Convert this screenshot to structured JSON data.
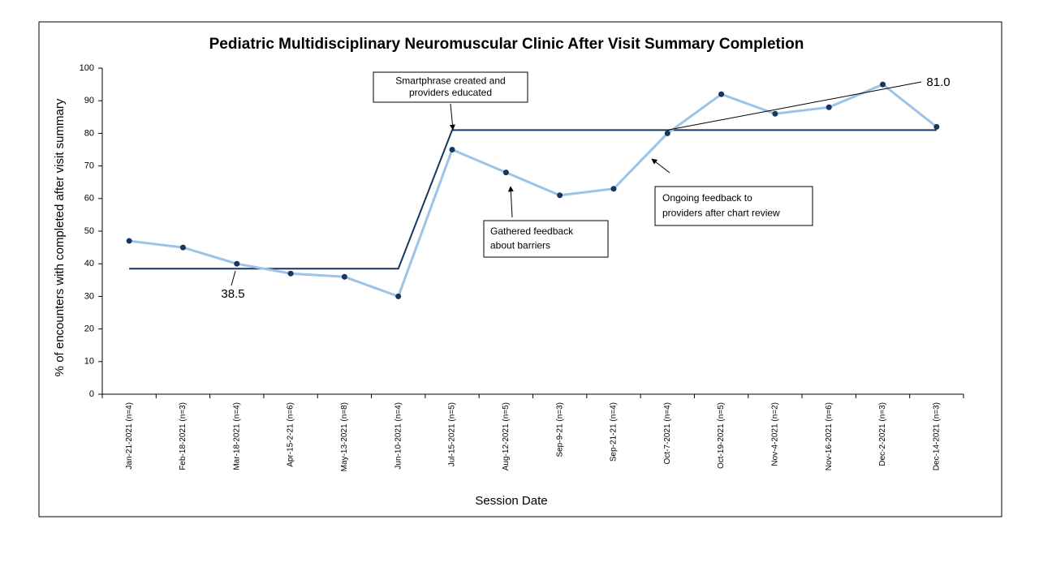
{
  "chart_data": {
    "type": "line",
    "title": "Pediatric Multidisciplinary  Neuromuscular  Clinic After Visit Summary Completion",
    "x_label": "Session Date",
    "y_label": "% of encounters  with completed after visit summary",
    "categories": [
      "Jan-21-2021 (n=4)",
      "Feb-18-2021 (n=3)",
      "Mar-18-2021 (n=4)",
      "Apr-15-2-21 (n=6)",
      "May-13-2021 (n=8)",
      "Jun-10-2021 (n=4)",
      "Jul-15-2021 (n=5)",
      "Aug-12-2021 (n=5)",
      "Sep-9-21 (n=3)",
      "Sep-21-21 (n=4)",
      "Oct-7-2021 (n=4)",
      "Oct-19-2021 (n=5)",
      "Nov-4-2021 (n=2)",
      "Nov-16-2021 (n=6)",
      "Dec-2-2021 (n=3)",
      "Dec-14-2021 (n=3)"
    ],
    "series": [
      {
        "color": "#9dc3e6",
        "marker_color": "#17375e",
        "values": [
          47,
          45,
          40,
          37,
          36,
          30,
          75,
          68,
          61,
          63,
          80,
          92,
          86,
          88,
          95,
          82
        ]
      },
      {
        "color": "#17375e",
        "values": [
          38.5,
          38.5,
          38.5,
          38.5,
          38.5,
          38.5,
          81,
          81,
          81,
          81,
          81,
          81,
          81,
          81,
          81,
          81
        ],
        "value_labels": [
          null,
          null,
          "38.5",
          null,
          null,
          null,
          null,
          null,
          null,
          null,
          "81.0",
          null,
          null,
          null,
          null,
          null
        ]
      }
    ],
    "ylim": [
      0,
      100
    ],
    "yticks": [
      0,
      10,
      20,
      30,
      40,
      50,
      60,
      70,
      80,
      90,
      100
    ],
    "annotations": [
      {
        "lines": [
          "Smartphrase created and",
          "providers educated"
        ]
      },
      {
        "lines": [
          "Gathered feedback",
          "about barriers"
        ]
      },
      {
        "lines": [
          "Ongoing feedback to",
          "providers after chart review"
        ]
      }
    ]
  }
}
